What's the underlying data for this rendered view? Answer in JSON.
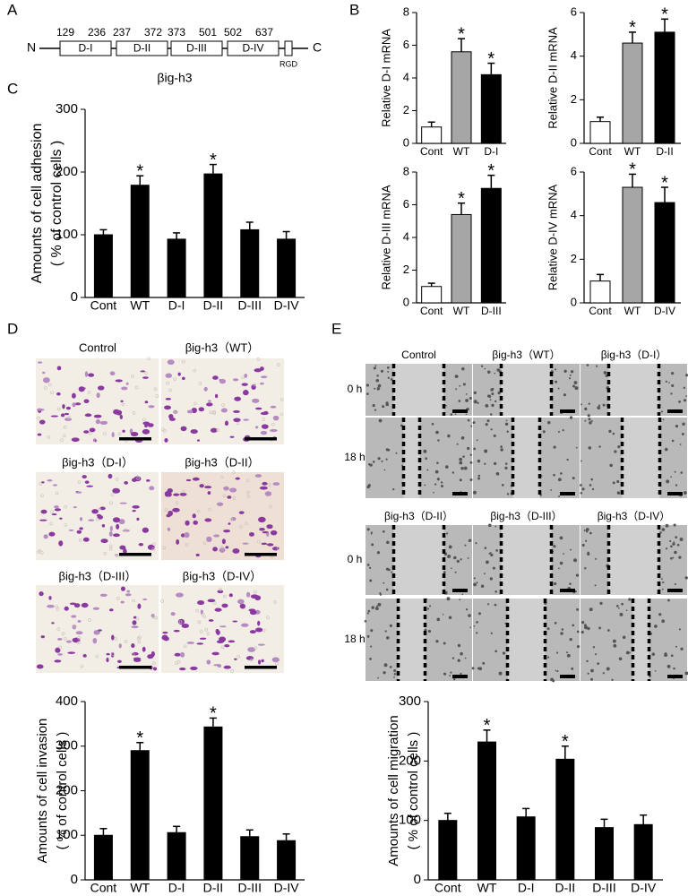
{
  "panel_labels": [
    "A",
    "B",
    "C",
    "D",
    "E"
  ],
  "panel_a": {
    "n_term": "N",
    "c_term": "C",
    "motif": "RGD",
    "protein": "βig-h3",
    "domains": [
      {
        "label": "D-I",
        "start": 129,
        "end": 236
      },
      {
        "label": "D-II",
        "start": 237,
        "end": 372
      },
      {
        "label": "D-III",
        "start": 373,
        "end": 501
      },
      {
        "label": "D-IV",
        "start": 502,
        "end": 637
      }
    ]
  },
  "panel_d": {
    "labels": [
      "Control",
      "βig-h3（WT）",
      "βig-h3（D-I）",
      "βig-h3（D-II）",
      "βig-h3（D-III）",
      "βig-h3（D-IV）"
    ]
  },
  "panel_e": {
    "labels_top": [
      "Control",
      "βig-h3（WT）",
      "βig-h3（D-I）"
    ],
    "labels_bottom": [
      "βig-h3（D-II）",
      "βig-h3（D-III）",
      "βig-h3（D-IV）"
    ],
    "row_labels": [
      "0 h",
      "18 h"
    ]
  },
  "chart_data": [
    {
      "type": "bar",
      "ylabel": [
        "Relative D-I mRNA"
      ],
      "categories": [
        "Cont",
        "WT",
        "D-I"
      ],
      "values": [
        1,
        5.6,
        4.2
      ],
      "errors": [
        0.3,
        0.8,
        0.7
      ],
      "colors": [
        "#ffffff",
        "#a6a6a6",
        "#000000"
      ],
      "ylim": [
        0,
        8
      ],
      "yticks": [
        0,
        2,
        4,
        6,
        8
      ],
      "annotations": [
        {
          "category": "WT",
          "text": "*"
        },
        {
          "category": "D-I",
          "text": "*"
        }
      ]
    },
    {
      "type": "bar",
      "ylabel": [
        "Relative D-II mRNA"
      ],
      "categories": [
        "Cont",
        "WT",
        "D-II"
      ],
      "values": [
        1,
        4.6,
        5.1
      ],
      "errors": [
        0.2,
        0.5,
        0.6
      ],
      "colors": [
        "#ffffff",
        "#a6a6a6",
        "#000000"
      ],
      "ylim": [
        0,
        6
      ],
      "yticks": [
        0,
        2,
        4,
        6
      ],
      "annotations": [
        {
          "category": "WT",
          "text": "*"
        },
        {
          "category": "D-II",
          "text": "*"
        }
      ]
    },
    {
      "type": "bar",
      "ylabel": [
        "Relative D-III mRNA"
      ],
      "categories": [
        "Cont",
        "WT",
        "D-III"
      ],
      "values": [
        1,
        5.4,
        7.0
      ],
      "errors": [
        0.2,
        0.7,
        0.8
      ],
      "colors": [
        "#ffffff",
        "#a6a6a6",
        "#000000"
      ],
      "ylim": [
        0,
        8
      ],
      "yticks": [
        0,
        2,
        4,
        6,
        8
      ],
      "annotations": [
        {
          "category": "WT",
          "text": "*"
        },
        {
          "category": "D-III",
          "text": "*"
        }
      ]
    },
    {
      "type": "bar",
      "ylabel": [
        "Relative D-IV mRNA"
      ],
      "categories": [
        "Cont",
        "WT",
        "D-IV"
      ],
      "values": [
        1,
        5.3,
        4.6
      ],
      "errors": [
        0.3,
        0.6,
        0.7
      ],
      "colors": [
        "#ffffff",
        "#a6a6a6",
        "#000000"
      ],
      "ylim": [
        0,
        6
      ],
      "yticks": [
        0,
        2,
        4,
        6
      ],
      "annotations": [
        {
          "category": "WT",
          "text": "*"
        },
        {
          "category": "D-IV",
          "text": "*"
        }
      ]
    },
    {
      "type": "bar",
      "ylabel": [
        "Amounts of cell adhesion",
        "( % of control cells )"
      ],
      "categories": [
        "Cont",
        "WT",
        "D-I",
        "D-II",
        "D-III",
        "D-IV"
      ],
      "values": [
        100,
        179,
        93,
        197,
        108,
        93
      ],
      "errors": [
        8,
        15,
        10,
        15,
        12,
        12
      ],
      "colors": [
        "#000000",
        "#000000",
        "#000000",
        "#000000",
        "#000000",
        "#000000"
      ],
      "ylim": [
        0,
        300
      ],
      "yticks": [
        0,
        100,
        200,
        300
      ],
      "annotations": [
        {
          "category": "WT",
          "text": "*"
        },
        {
          "category": "D-II",
          "text": "*"
        }
      ]
    },
    {
      "type": "bar",
      "ylabel": [
        "Amounts of cell invasion",
        "( % of control cells )"
      ],
      "categories": [
        "Cont",
        "WT",
        "D-I",
        "D-II",
        "D-III",
        "D-IV"
      ],
      "values": [
        100,
        290,
        106,
        343,
        97,
        88
      ],
      "errors": [
        15,
        18,
        14,
        20,
        15,
        15
      ],
      "colors": [
        "#000000",
        "#000000",
        "#000000",
        "#000000",
        "#000000",
        "#000000"
      ],
      "ylim": [
        0,
        400
      ],
      "yticks": [
        0,
        100,
        200,
        300,
        400
      ],
      "annotations": [
        {
          "category": "WT",
          "text": "*"
        },
        {
          "category": "D-II",
          "text": "*"
        }
      ]
    },
    {
      "type": "bar",
      "ylabel": [
        "Amounts of cell migration",
        "( % of control cells )"
      ],
      "categories": [
        "Cont",
        "WT",
        "D-I",
        "D-II",
        "D-III",
        "D-IV"
      ],
      "values": [
        100,
        232,
        106,
        203,
        88,
        93
      ],
      "errors": [
        12,
        20,
        14,
        22,
        14,
        16
      ],
      "colors": [
        "#000000",
        "#000000",
        "#000000",
        "#000000",
        "#000000",
        "#000000"
      ],
      "ylim": [
        0,
        300
      ],
      "yticks": [
        0,
        100,
        200,
        300
      ],
      "annotations": [
        {
          "category": "WT",
          "text": "*"
        },
        {
          "category": "D-II",
          "text": "*"
        }
      ]
    }
  ]
}
